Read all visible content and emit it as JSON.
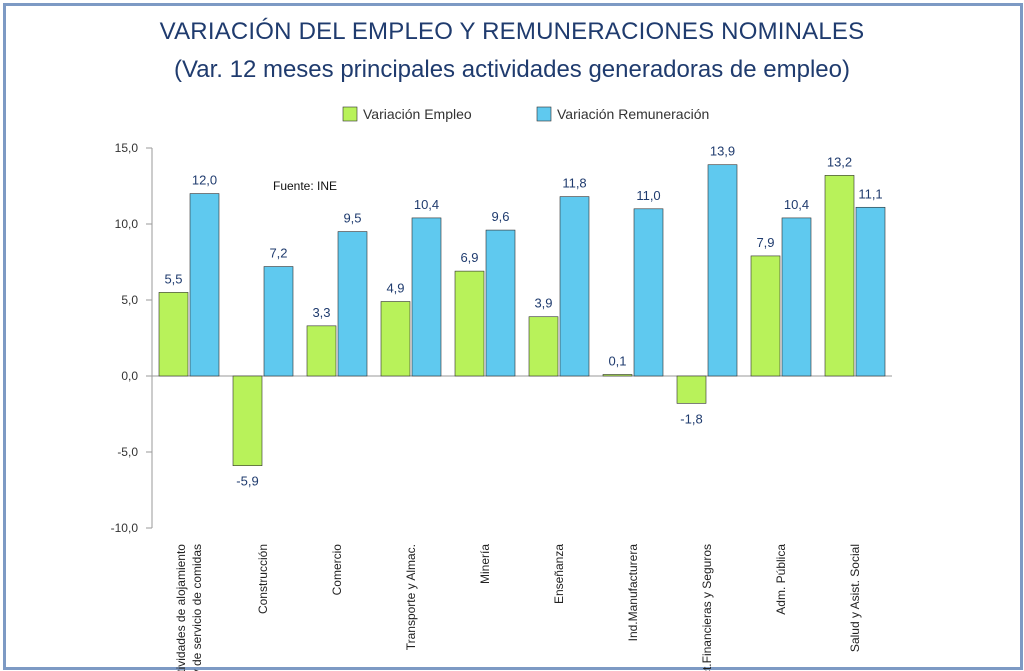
{
  "chart_data": {
    "type": "bar",
    "title": "VARIACIÓN DEL EMPLEO Y REMUNERACIONES NOMINALES",
    "subtitle": "(Var. 12 meses principales actividades generadoras de empleo)",
    "source_note": "Fuente: INE",
    "categories": [
      [
        "Actividades de alojamiento",
        "y de servicio de comidas"
      ],
      [
        "Construcción"
      ],
      [
        "Comercio"
      ],
      [
        "Transporte y Almac."
      ],
      [
        "Minería"
      ],
      [
        "Enseñanza"
      ],
      [
        "Ind.Manufacturera"
      ],
      [
        "Act.Financieras y Seguros"
      ],
      [
        "Adm. Pública"
      ],
      [
        "Salud y Asist. Social"
      ]
    ],
    "series": [
      {
        "name": "Variación Empleo",
        "color": "#b8f25a",
        "values": [
          5.5,
          -5.9,
          3.3,
          4.9,
          6.9,
          3.9,
          0.1,
          -1.8,
          7.9,
          13.2
        ],
        "labels": [
          "5,5",
          "-5,9",
          "3,3",
          "4,9",
          "6,9",
          "3,9",
          "0,1",
          "-1,8",
          "7,9",
          "13,2"
        ]
      },
      {
        "name": "Variación Remuneración",
        "color": "#5fc9ef",
        "values": [
          12.0,
          7.2,
          9.5,
          10.4,
          9.6,
          11.8,
          11.0,
          13.9,
          10.4,
          11.1
        ],
        "labels": [
          "12,0",
          "7,2",
          "9,5",
          "10,4",
          "9,6",
          "11,8",
          "11,0",
          "13,9",
          "10,4",
          "11,1"
        ]
      }
    ],
    "ylim": [
      -10,
      15
    ],
    "yticks": [
      15,
      10,
      5,
      0,
      -5,
      -10
    ],
    "ytick_labels": [
      "15,0",
      "10,0",
      "5,0",
      "0,0",
      "-5,0",
      "-10,0"
    ],
    "xlabel": "",
    "ylabel": "",
    "legend_position": "top-center",
    "grid": false
  }
}
